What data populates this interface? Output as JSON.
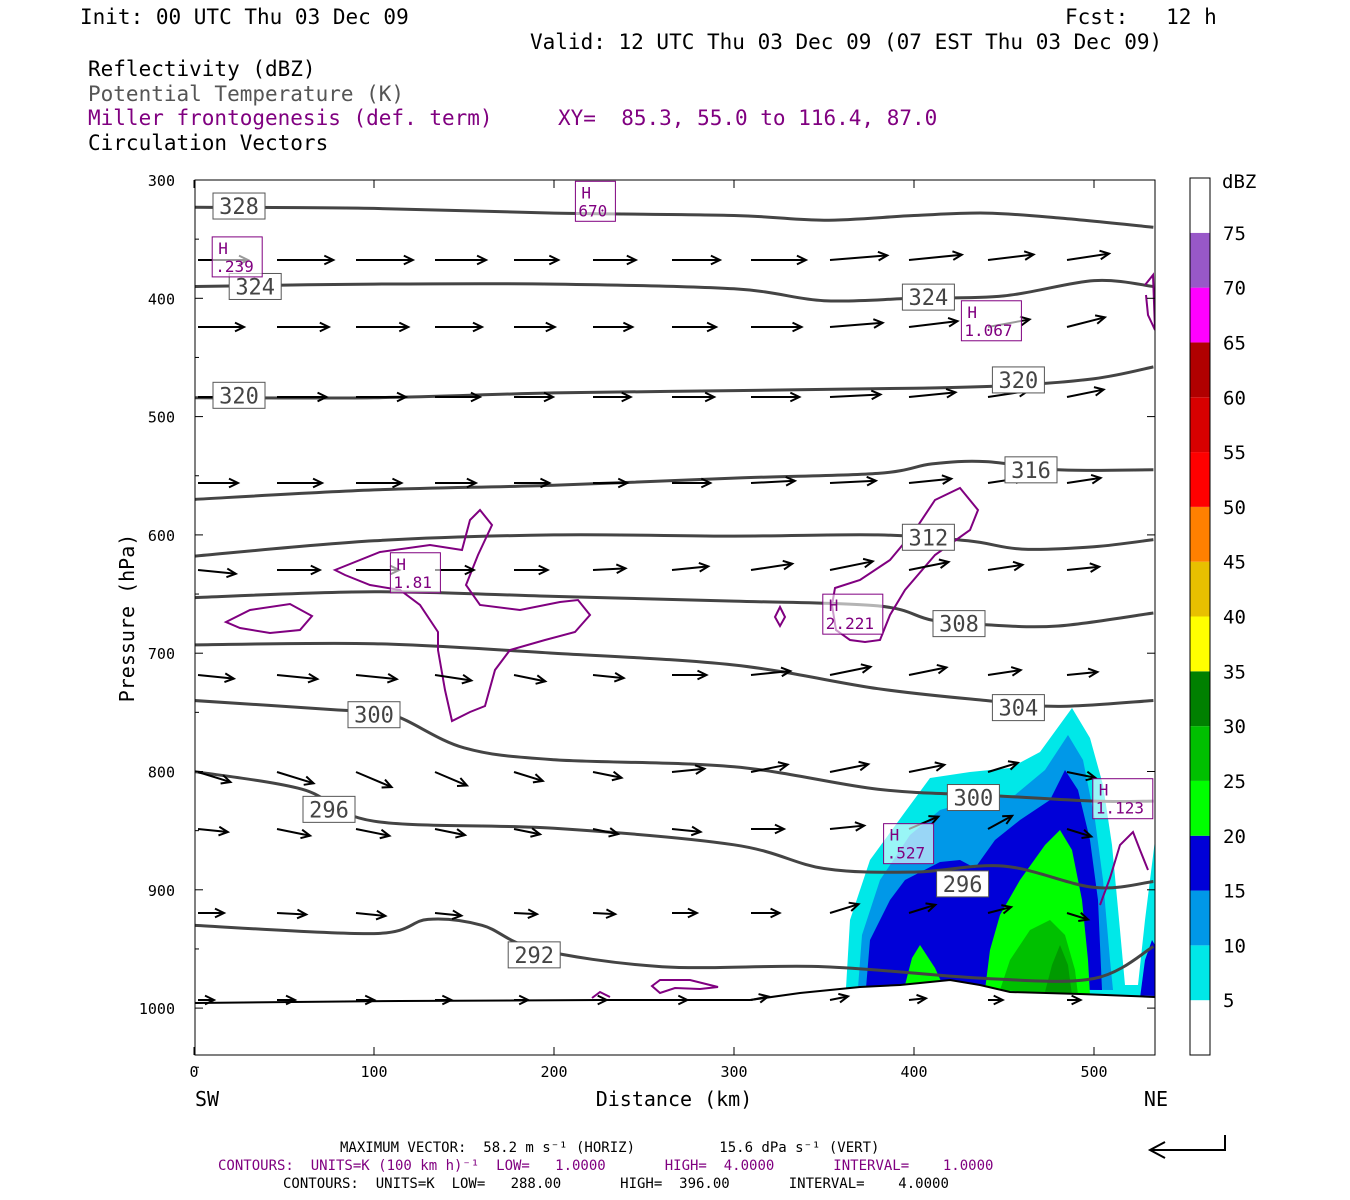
{
  "header": {
    "init": "Init: 00 UTC Thu 03 Dec 09",
    "fcst": "Fcst:   12 h",
    "valid": "Valid: 12 UTC Thu 03 Dec 09 (07 EST Thu 03 Dec 09)"
  },
  "legend_lines": {
    "reflectivity": "Reflectivity (dBZ)",
    "theta": "Potential Temperature (K)",
    "frontogenesis": "Miller frontogenesis (def. term)",
    "xy": "XY=  85.3, 55.0 to 116.4, 87.0",
    "vectors": "Circulation Vectors"
  },
  "footer": {
    "max_vector": "MAXIMUM VECTOR:  58.2 m s⁻¹ (HORIZ)          15.6 dPa s⁻¹ (VERT)",
    "contours_front": "CONTOURS:  UNITS=K (100 km h)⁻¹  LOW=   1.0000       HIGH=  4.0000       INTERVAL=    1.0000",
    "contours_theta": "CONTOURS:  UNITS=K  LOW=   288.00       HIGH=  396.00       INTERVAL=    4.0000"
  },
  "colors": {
    "theta": "#444444",
    "front": "#800080",
    "bands": [
      "#ffffff",
      "#00e8e8",
      "#0098e8",
      "#0000d8",
      "#00ff00",
      "#00c000",
      "#008000",
      "#ffff00",
      "#e8c000",
      "#ff8000",
      "#ff0000",
      "#d80000",
      "#b00000",
      "#ff00ff",
      "#9858c8",
      "#ffffff"
    ]
  },
  "chart_data": {
    "type": "cross-section",
    "xlabel": "Distance (km)",
    "ylabel": "Pressure (hPa)",
    "x_ticks": [
      0,
      100,
      200,
      300,
      400,
      500
    ],
    "y_ticks": [
      300,
      400,
      500,
      600,
      700,
      800,
      900,
      1000
    ],
    "xlim": [
      0,
      533
    ],
    "ylim": [
      300,
      1040
    ],
    "end_left": "SW",
    "end_right": "NE",
    "colorbar": {
      "unit": "dBZ",
      "levels": [
        5,
        10,
        15,
        20,
        25,
        30,
        35,
        40,
        45,
        50,
        55,
        60,
        65,
        70,
        75
      ]
    },
    "theta_contours": [
      {
        "label": "328",
        "lx": 25,
        "ly": 322,
        "points": [
          [
            0,
            323
          ],
          [
            100,
            324
          ],
          [
            200,
            328
          ],
          [
            300,
            330
          ],
          [
            350,
            334
          ],
          [
            400,
            330
          ],
          [
            440,
            328
          ],
          [
            480,
            332
          ],
          [
            533,
            340
          ]
        ]
      },
      {
        "label": "324",
        "lx": 34,
        "ly": 390,
        "points": [
          [
            0,
            390
          ],
          [
            100,
            388
          ],
          [
            200,
            388
          ],
          [
            300,
            392
          ],
          [
            350,
            402
          ],
          [
            400,
            400
          ],
          [
            450,
            398
          ],
          [
            500,
            385
          ],
          [
            533,
            390
          ]
        ]
      },
      {
        "label": "324",
        "lx": 408,
        "ly": 399,
        "points": []
      },
      {
        "label": "320",
        "lx": 25,
        "ly": 482,
        "points": [
          [
            0,
            484
          ],
          [
            100,
            484
          ],
          [
            200,
            480
          ],
          [
            300,
            478
          ],
          [
            400,
            476
          ],
          [
            450,
            474
          ],
          [
            500,
            468
          ],
          [
            533,
            458
          ]
        ]
      },
      {
        "label": "320",
        "lx": 458,
        "ly": 469,
        "points": []
      },
      {
        "label": "316",
        "lx": 465,
        "ly": 545,
        "points": [
          [
            0,
            570
          ],
          [
            100,
            562
          ],
          [
            200,
            558
          ],
          [
            300,
            552
          ],
          [
            380,
            548
          ],
          [
            410,
            540
          ],
          [
            440,
            538
          ],
          [
            480,
            545
          ],
          [
            533,
            545
          ]
        ]
      },
      {
        "label": "312",
        "lx": 408,
        "ly": 602,
        "points": [
          [
            0,
            618
          ],
          [
            100,
            605
          ],
          [
            200,
            600
          ],
          [
            300,
            601
          ],
          [
            380,
            600
          ],
          [
            430,
            605
          ],
          [
            460,
            612
          ],
          [
            500,
            610
          ],
          [
            533,
            604
          ]
        ]
      },
      {
        "label": "308",
        "lx": 425,
        "ly": 675,
        "points": [
          [
            0,
            653
          ],
          [
            100,
            648
          ],
          [
            200,
            652
          ],
          [
            300,
            656
          ],
          [
            380,
            660
          ],
          [
            410,
            672
          ],
          [
            440,
            676
          ],
          [
            480,
            677
          ],
          [
            533,
            666
          ]
        ]
      },
      {
        "label": "304",
        "lx": 458,
        "ly": 746,
        "points": [
          [
            0,
            693
          ],
          [
            100,
            692
          ],
          [
            200,
            700
          ],
          [
            300,
            710
          ],
          [
            380,
            730
          ],
          [
            440,
            740
          ],
          [
            480,
            745
          ],
          [
            533,
            740
          ]
        ]
      },
      {
        "label": "300",
        "lx": 100,
        "ly": 752,
        "points": [
          [
            0,
            740
          ],
          [
            80,
            748
          ],
          [
            110,
            752
          ],
          [
            150,
            780
          ],
          [
            200,
            790
          ],
          [
            300,
            796
          ],
          [
            380,
            815
          ],
          [
            440,
            820
          ],
          [
            500,
            825
          ],
          [
            533,
            825
          ]
        ]
      },
      {
        "label": "300",
        "lx": 433,
        "ly": 822,
        "points": []
      },
      {
        "label": "296",
        "lx": 75,
        "ly": 832,
        "points": [
          [
            0,
            800
          ],
          [
            60,
            815
          ],
          [
            100,
            842
          ],
          [
            200,
            848
          ],
          [
            300,
            862
          ],
          [
            350,
            882
          ],
          [
            400,
            885
          ],
          [
            450,
            880
          ],
          [
            500,
            898
          ],
          [
            533,
            893
          ]
        ]
      },
      {
        "label": "296",
        "lx": 427,
        "ly": 895,
        "points": []
      },
      {
        "label": "292",
        "lx": 189,
        "ly": 955,
        "points": [
          [
            0,
            930
          ],
          [
            100,
            937
          ],
          [
            130,
            925
          ],
          [
            160,
            930
          ],
          [
            190,
            950
          ],
          [
            260,
            965
          ],
          [
            350,
            965
          ],
          [
            440,
            975
          ],
          [
            500,
            975
          ],
          [
            533,
            948
          ]
        ]
      }
    ],
    "frontogenesis_maxima": [
      {
        "label": "H",
        "value": "670",
        "x": 223,
        "y": 318
      },
      {
        "label": "H",
        "value": ".239",
        "x": 24,
        "y": 365
      },
      {
        "label": "H",
        "value": "1.067",
        "x": 443,
        "y": 419
      },
      {
        "label": "H",
        "value": "1.81",
        "x": 123,
        "y": 632
      },
      {
        "label": "H",
        "value": "2.221",
        "x": 366,
        "y": 667
      },
      {
        "label": "H",
        "value": ".527",
        "x": 397,
        "y": 861
      },
      {
        "label": "H",
        "value": "1.123",
        "x": 516,
        "y": 823
      }
    ]
  }
}
